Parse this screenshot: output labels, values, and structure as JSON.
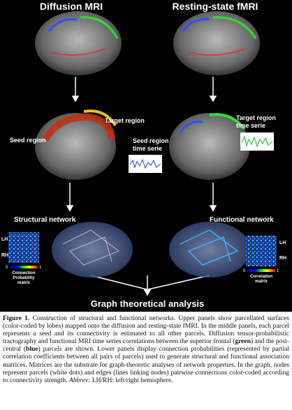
{
  "figure": {
    "panel_titles": [
      "Diffusion MRI",
      "Resting-state fMRI"
    ],
    "labels": {
      "seed_region": "Seed region",
      "target_region": "Target region",
      "seed_series": [
        "Seed region",
        "time serie"
      ],
      "target_series": [
        "Target region",
        "time serie"
      ],
      "structural": "Structural network",
      "functional": "Functional network",
      "lh": "LH",
      "rh": "RH",
      "conn_matrix": [
        "Connection",
        "Probability",
        "matrix"
      ],
      "corr_matrix": [
        "Correlation",
        "matrix"
      ],
      "cbar_min": "0",
      "cbar_max": "1",
      "graph": "Graph theoretical analysis"
    }
  },
  "caption": {
    "runs": [
      {
        "style": "bold",
        "text": "Figure 1."
      },
      {
        "style": "normal",
        "text": " Construction of structural and functional networks. Upper panels show parcellated surfaces (color-coded by lobes) mapped onto the diffusion and resting-state fMRI. In the middle panels, each parcel represents a seed and its connectivity is estimated to all other parcels. Diffusion tensor-probabilistic tractography and functional MRI time series correlations between the superior frontal ("
      },
      {
        "style": "bold",
        "text": "green"
      },
      {
        "style": "normal",
        "text": ") and the post-central ("
      },
      {
        "style": "bold",
        "text": "blue"
      },
      {
        "style": "normal",
        "text": ") parcels are shown. Lower panels display connection probabilities (represented by partial correlation coefficients between all pairs of parcels) used to generate structural and functional association matrices. Matrices are the substrate for graph-theoretic analyses of network properties. In the graph, nodes represent parcels (white dots) and edges (lines linking nodes) pairwise connections color-coded according to connectivity strength. "
      },
      {
        "style": "italic",
        "text": "Abbrev:"
      },
      {
        "style": "normal",
        "text": " LH/RH: left/right hemisphere."
      }
    ]
  }
}
